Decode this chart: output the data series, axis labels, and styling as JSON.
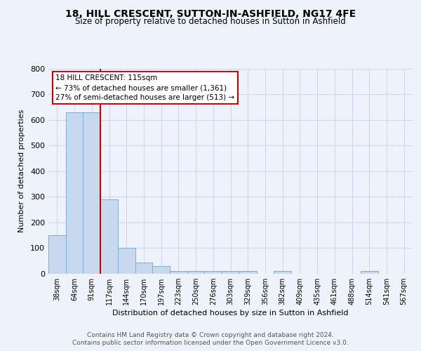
{
  "title_line1": "18, HILL CRESCENT, SUTTON-IN-ASHFIELD, NG17 4FE",
  "title_line2": "Size of property relative to detached houses in Sutton in Ashfield",
  "xlabel": "Distribution of detached houses by size in Sutton in Ashfield",
  "ylabel": "Number of detached properties",
  "bin_labels": [
    "38sqm",
    "64sqm",
    "91sqm",
    "117sqm",
    "144sqm",
    "170sqm",
    "197sqm",
    "223sqm",
    "250sqm",
    "276sqm",
    "303sqm",
    "329sqm",
    "356sqm",
    "382sqm",
    "409sqm",
    "435sqm",
    "461sqm",
    "488sqm",
    "514sqm",
    "541sqm",
    "567sqm"
  ],
  "bar_heights": [
    150,
    630,
    630,
    290,
    100,
    45,
    30,
    10,
    10,
    10,
    10,
    10,
    0,
    10,
    0,
    0,
    0,
    0,
    10,
    0,
    0
  ],
  "bar_color": "#c8d8ee",
  "bar_edge_color": "#7aaed6",
  "red_line_x": 2.5,
  "annotation_text_line1": "18 HILL CRESCENT: 115sqm",
  "annotation_text_line2": "← 73% of detached houses are smaller (1,361)",
  "annotation_text_line3": "27% of semi-detached houses are larger (513) →",
  "annotation_box_color": "#ffffff",
  "annotation_box_edge": "#cc0000",
  "red_line_color": "#cc0000",
  "ylim": [
    0,
    800
  ],
  "yticks": [
    0,
    100,
    200,
    300,
    400,
    500,
    600,
    700,
    800
  ],
  "grid_color": "#d0d8ec",
  "footer_line1": "Contains HM Land Registry data © Crown copyright and database right 2024.",
  "footer_line2": "Contains public sector information licensed under the Open Government Licence v3.0.",
  "bg_color": "#eef2fb"
}
